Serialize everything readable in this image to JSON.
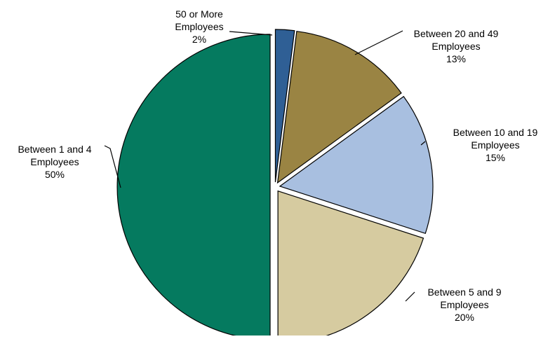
{
  "chart_data": {
    "type": "pie",
    "title": "",
    "slices": [
      {
        "lines": [
          "50 or More",
          "Employees",
          "2%"
        ],
        "value": 2,
        "color": "#2f5f95"
      },
      {
        "lines": [
          "Between 20 and 49",
          "Employees",
          "13%"
        ],
        "value": 13,
        "color": "#9a8443"
      },
      {
        "lines": [
          "Between 10 and 19",
          "Employees",
          "15%"
        ],
        "value": 15,
        "color": "#a8bfe0"
      },
      {
        "lines": [
          "Between 5 and 9",
          "Employees",
          "20%"
        ],
        "value": 20,
        "color": "#d6cba0"
      },
      {
        "lines": [
          "Between 1 and 4",
          "Employees",
          "50%"
        ],
        "value": 50,
        "color": "#057a5f"
      }
    ]
  }
}
